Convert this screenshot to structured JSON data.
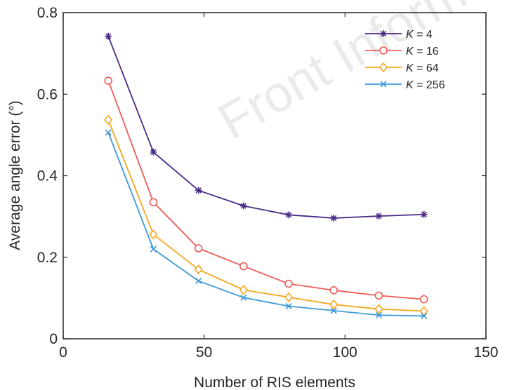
{
  "watermark": "Front Inform",
  "chart_data": {
    "type": "line",
    "xlabel": "Number of RIS elements",
    "ylabel": "Average angle error (°)",
    "xlim": [
      0,
      150
    ],
    "ylim": [
      0,
      0.8
    ],
    "xticks": [
      0,
      50,
      100,
      150
    ],
    "yticks": [
      0,
      0.2,
      0.4,
      0.6,
      0.8
    ],
    "xtick_labels": [
      "0",
      "50",
      "100",
      "150"
    ],
    "ytick_labels": [
      "0",
      "0.2",
      "0.4",
      "0.6",
      "0.8"
    ],
    "grid": false,
    "legend_position": "top-right",
    "x": [
      16,
      32,
      48,
      64,
      80,
      96,
      112,
      128
    ],
    "series": [
      {
        "name": "K = 4",
        "var": "K",
        "rest": " = 4",
        "color": "#4B2A86",
        "marker": "asterisk",
        "values": [
          0.742,
          0.458,
          0.364,
          0.326,
          0.304,
          0.296,
          0.301,
          0.305
        ]
      },
      {
        "name": "K = 16",
        "var": "K",
        "rest": " = 16",
        "color": "#EF5B55",
        "marker": "circle",
        "values": [
          0.633,
          0.335,
          0.222,
          0.178,
          0.135,
          0.119,
          0.106,
          0.097
        ]
      },
      {
        "name": "K = 64",
        "var": "K",
        "rest": " = 64",
        "color": "#F5A81C",
        "marker": "diamond",
        "values": [
          0.537,
          0.256,
          0.17,
          0.12,
          0.102,
          0.084,
          0.073,
          0.068
        ]
      },
      {
        "name": "K = 256",
        "var": "K",
        "rest": " = 256",
        "color": "#3E98D8",
        "marker": "x",
        "values": [
          0.506,
          0.22,
          0.142,
          0.101,
          0.08,
          0.069,
          0.058,
          0.056
        ]
      }
    ]
  }
}
